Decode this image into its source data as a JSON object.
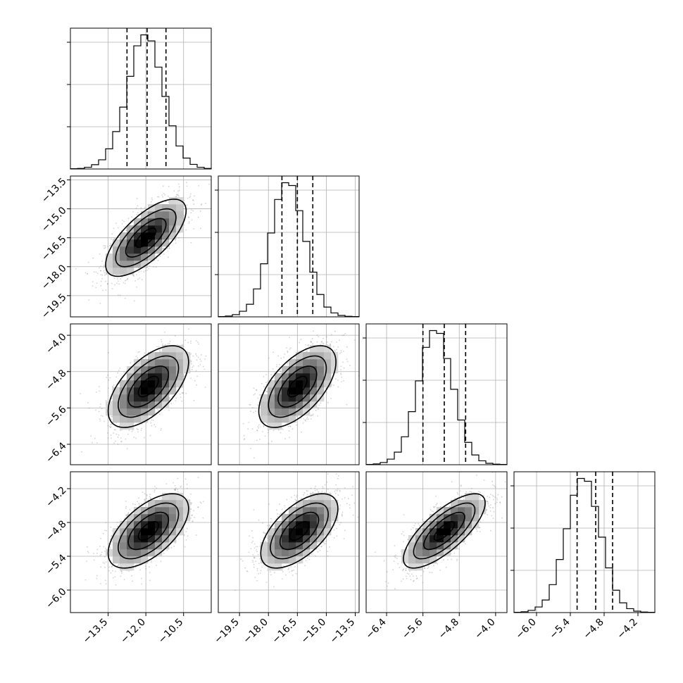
{
  "chart_data": {
    "type": "corner",
    "parameters": 4,
    "grid": true,
    "colors": {
      "hist": "#000000",
      "quantile": "#000000",
      "grid": "#b0b0b0",
      "points": "#7f7f7f"
    },
    "quantiles": [
      0.16,
      0.5,
      0.84
    ],
    "axes": [
      {
        "range": [
          -15.0,
          -9.4
        ],
        "ticks": [
          -13.5,
          -12.0,
          -10.5
        ],
        "tick_labels": [
          "−13.5",
          "−12.0",
          "−10.5"
        ]
      },
      {
        "range": [
          -20.6,
          -13.3
        ],
        "ticks": [
          -19.5,
          -18.0,
          -16.5,
          -15.0,
          -13.5
        ],
        "tick_labels": [
          "−19.5",
          "−18.0",
          "−16.5",
          "−15.0",
          "−13.5"
        ]
      },
      {
        "range": [
          -6.85,
          -3.75
        ],
        "ticks": [
          -6.4,
          -5.6,
          -4.8,
          -4.0
        ],
        "tick_labels": [
          "−6.4",
          "−5.6",
          "−4.8",
          "−4.0"
        ]
      },
      {
        "range": [
          -6.4,
          -3.9
        ],
        "ticks": [
          -6.0,
          -5.4,
          -4.8,
          -4.2
        ],
        "tick_labels": [
          "−6.0",
          "−5.4",
          "−4.8",
          "−4.2"
        ]
      }
    ],
    "marginals": [
      {
        "bin_edges_start": -15.0,
        "bin_width": 0.28,
        "counts": [
          1,
          2,
          6,
          15,
          32,
          70,
          130,
          215,
          322,
          428,
          466,
          445,
          354,
          252,
          150,
          80,
          38,
          16,
          6,
          2
        ],
        "quantile_values": [
          -12.75,
          -11.95,
          -11.2
        ]
      },
      {
        "bin_edges_start": -20.6,
        "bin_width": 0.365,
        "counts": [
          1,
          3,
          8,
          20,
          45,
          100,
          190,
          300,
          420,
          480,
          470,
          380,
          270,
          160,
          80,
          35,
          14,
          5,
          2,
          1
        ],
        "quantile_values": [
          -17.3,
          -16.5,
          -15.7
        ]
      },
      {
        "bin_edges_start": -6.85,
        "bin_width": 0.155,
        "counts": [
          1,
          3,
          8,
          20,
          45,
          100,
          190,
          300,
          420,
          480,
          470,
          380,
          270,
          160,
          80,
          35,
          14,
          5,
          2,
          1
        ],
        "quantile_values": [
          -5.6,
          -5.13,
          -4.66
        ]
      },
      {
        "bin_edges_start": -6.4,
        "bin_width": 0.125,
        "counts": [
          1,
          3,
          8,
          20,
          45,
          100,
          190,
          300,
          420,
          480,
          470,
          380,
          270,
          160,
          80,
          35,
          14,
          5,
          2,
          1
        ],
        "quantile_values": [
          -5.28,
          -4.95,
          -4.65
        ]
      }
    ],
    "joint": [
      {
        "row": 1,
        "col": 0,
        "center": [
          -12.0,
          -16.5
        ],
        "sd": [
          0.8,
          1.0
        ],
        "rho": 0.7
      },
      {
        "row": 2,
        "col": 0,
        "center": [
          -11.9,
          -5.13
        ],
        "sd": [
          0.8,
          0.45
        ],
        "rho": 0.6
      },
      {
        "row": 2,
        "col": 1,
        "center": [
          -16.5,
          -5.13
        ],
        "sd": [
          1.0,
          0.45
        ],
        "rho": 0.6
      },
      {
        "row": 3,
        "col": 0,
        "center": [
          -11.9,
          -4.95
        ],
        "sd": [
          0.8,
          0.33
        ],
        "rho": 0.6
      },
      {
        "row": 3,
        "col": 1,
        "center": [
          -16.4,
          -4.95
        ],
        "sd": [
          1.0,
          0.33
        ],
        "rho": 0.6
      },
      {
        "row": 3,
        "col": 2,
        "center": [
          -5.13,
          -4.95
        ],
        "sd": [
          0.45,
          0.33
        ],
        "rho": 0.75
      }
    ]
  }
}
